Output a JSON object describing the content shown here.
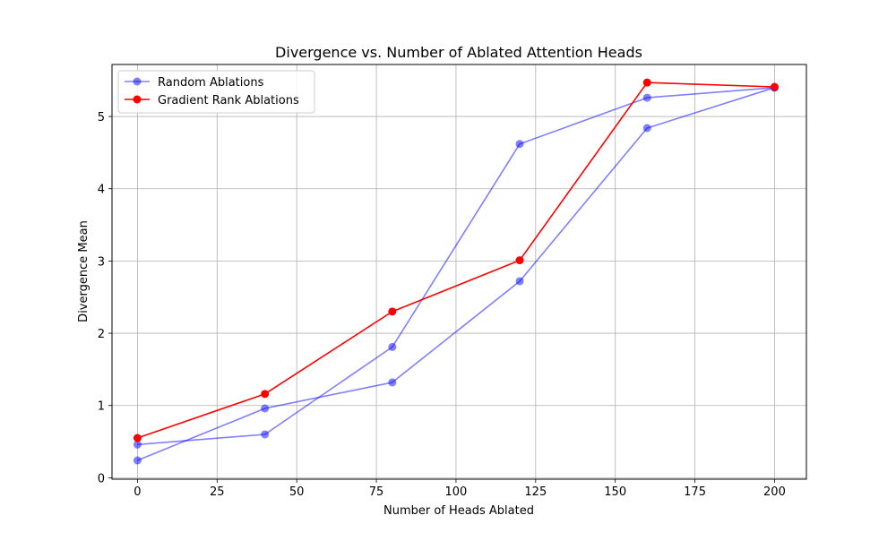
{
  "chart_data": {
    "type": "line",
    "title": "Divergence vs. Number of Ablated Attention Heads",
    "xlabel": "Number of Heads Ablated",
    "ylabel": "Divergence Mean",
    "xlim": [
      -8,
      210
    ],
    "ylim": [
      -0.02,
      5.72
    ],
    "xticks": [
      0,
      25,
      50,
      75,
      100,
      125,
      150,
      175,
      200
    ],
    "yticks": [
      0,
      1,
      2,
      3,
      4,
      5
    ],
    "grid": true,
    "legend_position": "upper-left",
    "legend": [
      {
        "label": "Random Ablations",
        "color": "#0000ff",
        "alpha": 0.5
      },
      {
        "label": "Gradient Rank Ablations",
        "color": "#ff0000",
        "alpha": 1.0
      }
    ],
    "series": [
      {
        "group": "random",
        "color": "#0000ff",
        "alpha": 0.5,
        "points": [
          [
            0,
            0.46
          ],
          [
            40,
            0.6
          ],
          [
            80,
            1.81
          ],
          [
            120,
            4.62
          ],
          [
            160,
            5.26
          ],
          [
            200,
            5.4
          ]
        ]
      },
      {
        "group": "random",
        "color": "#0000ff",
        "alpha": 0.5,
        "points": [
          [
            0,
            0.24
          ],
          [
            40,
            0.96
          ],
          [
            80,
            1.32
          ],
          [
            120,
            2.72
          ],
          [
            160,
            4.84
          ],
          [
            200,
            5.4
          ]
        ]
      },
      {
        "name": "Gradient Rank Ablations",
        "color": "#ff0000",
        "alpha": 1.0,
        "points": [
          [
            0,
            0.55
          ],
          [
            40,
            1.16
          ],
          [
            80,
            2.3
          ],
          [
            120,
            3.01
          ],
          [
            160,
            5.47
          ],
          [
            200,
            5.41
          ]
        ]
      }
    ]
  }
}
